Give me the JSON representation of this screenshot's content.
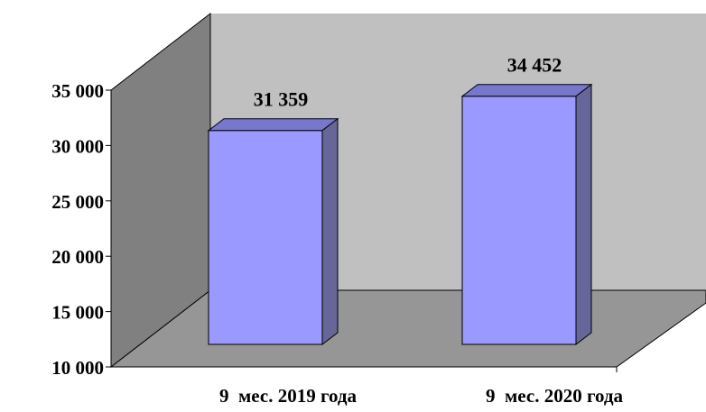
{
  "chart_data": {
    "type": "bar",
    "categories": [
      "9  мес. 2019 года",
      "9  мес. 2020 года"
    ],
    "values": [
      31359,
      34452
    ],
    "value_labels": [
      "31 359",
      "34 452"
    ],
    "ylim": [
      10000,
      35000
    ],
    "yticks": [
      10000,
      15000,
      20000,
      25000,
      30000,
      35000
    ],
    "ytick_labels": [
      "10 000",
      "15 000",
      "20 000",
      "25 000",
      "30 000",
      "35 000"
    ],
    "title": "",
    "xlabel": "",
    "ylabel": "",
    "legend": "none",
    "grid": false,
    "three_d": true,
    "colors": {
      "bar_front": "#9999ff",
      "bar_top": "#7777cc",
      "bar_side": "#666699",
      "back_wall": "#c0c0c0",
      "side_wall": "#808080",
      "floor": "#969696"
    }
  }
}
